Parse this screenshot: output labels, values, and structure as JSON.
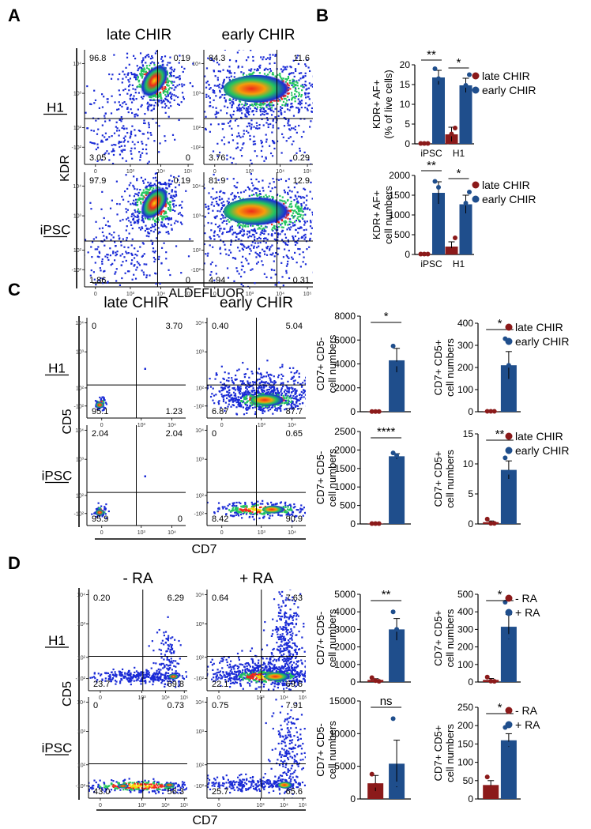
{
  "panels": {
    "A": "A",
    "B": "B",
    "C": "C",
    "D": "D"
  },
  "colors": {
    "late": "#8b1a1a",
    "early": "#1f4e8c",
    "density_low": "#1a2bd6",
    "density_mid": "#22c55e",
    "density_high": "#ef2a1a",
    "density_peak": "#f5d90a"
  },
  "flow": {
    "A": {
      "columns": [
        "late CHIR",
        "early CHIR"
      ],
      "rows": [
        "H1",
        "iPSC"
      ],
      "x_axis_title": "ALDEFLUOR",
      "y_axis_title": "KDR",
      "plots": [
        {
          "row": 0,
          "col": 0,
          "quadrants": [
            "96.8",
            "0.19",
            "3.05",
            "0"
          ],
          "cluster": "tight-high-left"
        },
        {
          "row": 0,
          "col": 1,
          "quadrants": [
            "84.3",
            "11.6",
            "3.76",
            "0.29"
          ],
          "cluster": "broad-high"
        },
        {
          "row": 1,
          "col": 0,
          "quadrants": [
            "97.9",
            "0.19",
            "1.86",
            "0"
          ],
          "cluster": "tight-high-left"
        },
        {
          "row": 1,
          "col": 1,
          "quadrants": [
            "81.9",
            "12.9",
            "4.94",
            "0.31"
          ],
          "cluster": "broad-high"
        }
      ]
    },
    "C": {
      "columns": [
        "late CHIR",
        "early CHIR"
      ],
      "rows": [
        "H1",
        "iPSC"
      ],
      "x_axis_title": "CD7",
      "y_axis_title": "CD5",
      "plots": [
        {
          "row": 0,
          "col": 0,
          "quadrants": [
            "0",
            "3.70",
            "95.1",
            "1.23"
          ],
          "cluster": "tiny-low-left"
        },
        {
          "row": 0,
          "col": 1,
          "quadrants": [
            "0.40",
            "5.04",
            "6.87",
            "87.7"
          ],
          "cluster": "broad-low-right"
        },
        {
          "row": 1,
          "col": 0,
          "quadrants": [
            "2.04",
            "2.04",
            "95.9",
            "0"
          ],
          "cluster": "tiny-low-left"
        },
        {
          "row": 1,
          "col": 1,
          "quadrants": [
            "0",
            "0.65",
            "8.42",
            "90.9"
          ],
          "cluster": "flat-low-right"
        }
      ]
    },
    "D": {
      "columns": [
        "- RA",
        "+ RA"
      ],
      "rows": [
        "H1",
        "iPSC"
      ],
      "x_axis_title": "CD7",
      "y_axis_title": "CD5",
      "plots": [
        {
          "row": 0,
          "col": 0,
          "quadrants": [
            "0.20",
            "6.29",
            "23.7",
            "69.8"
          ],
          "cluster": "band-low"
        },
        {
          "row": 0,
          "col": 1,
          "quadrants": [
            "0.64",
            "7.63",
            "22.1",
            "69.6"
          ],
          "cluster": "band-plume"
        },
        {
          "row": 1,
          "col": 0,
          "quadrants": [
            "0",
            "0.73",
            "43.0",
            "56.3"
          ],
          "cluster": "band-flat"
        },
        {
          "row": 1,
          "col": 1,
          "quadrants": [
            "0.75",
            "7.91",
            "25.7",
            "65.6"
          ],
          "cluster": "band-plume-small"
        }
      ]
    },
    "tick_labels": {
      "x": [
        "0",
        "10³",
        "10⁴",
        "10⁵"
      ],
      "y": [
        "-10²",
        "10²",
        "10³",
        "10⁴",
        "10⁵"
      ]
    }
  },
  "chart_data": [
    {
      "type": "bar",
      "panel": "B",
      "id": "B1",
      "ylabel": [
        "KDR+ AF+",
        "(% of live cells)"
      ],
      "categories": [
        "iPSC",
        "H1"
      ],
      "ylim": [
        0,
        20
      ],
      "yticks": [
        "0",
        "5",
        "10",
        "15",
        "20"
      ],
      "series": [
        {
          "name": "late CHIR",
          "values": [
            0.1,
            2.4
          ],
          "errors": [
            0.05,
            1.8
          ],
          "points": [
            [
              0.1,
              0.1,
              0.1
            ],
            [
              0.5,
              2.5,
              4.0
            ]
          ]
        },
        {
          "name": "early CHIR",
          "values": [
            16.8,
            14.8
          ],
          "errors": [
            1.8,
            1.8
          ],
          "points": [
            [
              19.0,
              16.5,
              14.8
            ],
            [
              12.0,
              14.8,
              17.5
            ]
          ]
        }
      ],
      "significance": [
        "**",
        "*"
      ],
      "legend": [
        "late CHIR",
        "early CHIR"
      ]
    },
    {
      "type": "bar",
      "panel": "B",
      "id": "B2",
      "ylabel": [
        "KDR+ AF+",
        "cell numbers"
      ],
      "categories": [
        "iPSC",
        "H1"
      ],
      "ylim": [
        0,
        2000
      ],
      "yticks": [
        "0",
        "500",
        "1000",
        "1500",
        "2000"
      ],
      "series": [
        {
          "name": "late CHIR",
          "values": [
            10,
            200
          ],
          "errors": [
            5,
            120
          ],
          "points": [
            [
              10,
              10,
              10
            ],
            [
              60,
              100,
              420
            ]
          ]
        },
        {
          "name": "early CHIR",
          "values": [
            1560,
            1270
          ],
          "errors": [
            280,
            230
          ],
          "points": [
            [
              1850,
              1700,
              1100
            ],
            [
              950,
              1300,
              1580
            ]
          ]
        }
      ],
      "significance": [
        "**",
        "*"
      ],
      "legend": [
        "late CHIR",
        "early CHIR"
      ]
    },
    {
      "type": "bar",
      "panel": "C",
      "id": "C1",
      "ylabel": [
        "CD7+ CD5-",
        "cell numbers"
      ],
      "categories": [
        "late CHIR",
        "early CHIR"
      ],
      "ylim": [
        0,
        8000
      ],
      "yticks": [
        "0",
        "2000",
        "4000",
        "6000",
        "8000"
      ],
      "series": [
        {
          "name": "values",
          "values": [
            20,
            4300
          ],
          "errors": [
            5,
            1000
          ],
          "points": [
            [
              20,
              20,
              20
            ],
            [
              5500,
              4000,
              3000
            ]
          ]
        }
      ],
      "significance": [
        "*"
      ]
    },
    {
      "type": "bar",
      "panel": "C",
      "id": "C2",
      "ylabel": [
        "CD7+ CD5+",
        "cell numbers"
      ],
      "categories": [
        "late CHIR",
        "early CHIR"
      ],
      "ylim": [
        0,
        400
      ],
      "yticks": [
        "0",
        "100",
        "200",
        "300",
        "400"
      ],
      "series": [
        {
          "name": "values",
          "values": [
            2,
            210
          ],
          "errors": [
            1,
            62
          ],
          "points": [
            [
              2,
              2,
              2
            ],
            [
              330,
              210,
              130
            ]
          ]
        }
      ],
      "significance": [
        "*"
      ],
      "legend": [
        "late CHIR",
        "early CHIR"
      ]
    },
    {
      "type": "bar",
      "panel": "C",
      "id": "C3",
      "ylabel": [
        "CD7+ CD5-",
        "cell numbers"
      ],
      "categories": [
        "late CHIR",
        "early CHIR"
      ],
      "ylim": [
        0,
        2500
      ],
      "yticks": [
        "0",
        "500",
        "1000",
        "1500",
        "2000",
        "2500"
      ],
      "series": [
        {
          "name": "values",
          "values": [
            10,
            1830
          ],
          "errors": [
            5,
            70
          ],
          "points": [
            [
              10,
              10,
              10
            ],
            [
              1920,
              1850,
              1760
            ]
          ]
        }
      ],
      "significance": [
        "****"
      ]
    },
    {
      "type": "bar",
      "panel": "C",
      "id": "C4",
      "ylabel": [
        "CD7+ CD5+",
        "cell numbers"
      ],
      "categories": [
        "late CHIR",
        "early CHIR"
      ],
      "ylim": [
        0,
        15
      ],
      "yticks": [
        "0",
        "5",
        "10",
        "15"
      ],
      "series": [
        {
          "name": "values",
          "values": [
            0.3,
            9.0
          ],
          "errors": [
            0.2,
            1.5
          ],
          "points": [
            [
              0.8,
              0.1,
              0.1
            ],
            [
              11.0,
              8.6,
              7.5
            ]
          ]
        }
      ],
      "significance": [
        "**"
      ],
      "legend": [
        "late CHIR",
        "early CHIR"
      ]
    },
    {
      "type": "bar",
      "panel": "D",
      "id": "D1",
      "ylabel": [
        "CD7+ CD5-",
        "cell numbers"
      ],
      "categories": [
        "- RA",
        "+ RA"
      ],
      "ylim": [
        0,
        5000
      ],
      "yticks": [
        "0",
        "1000",
        "2000",
        "3000",
        "4000",
        "5000"
      ],
      "series": [
        {
          "name": "values",
          "values": [
            120,
            3000
          ],
          "errors": [
            70,
            620
          ],
          "points": [
            [
              250,
              80,
              40
            ],
            [
              4000,
              3000,
              2000
            ]
          ]
        }
      ],
      "significance": [
        "**"
      ]
    },
    {
      "type": "bar",
      "panel": "D",
      "id": "D2",
      "ylabel": [
        "CD7+ CD5+",
        "cell numbers"
      ],
      "categories": [
        "- RA",
        "+ RA"
      ],
      "ylim": [
        0,
        500
      ],
      "yticks": [
        "0",
        "100",
        "200",
        "300",
        "400",
        "500"
      ],
      "series": [
        {
          "name": "values",
          "values": [
            12,
            315
          ],
          "errors": [
            8,
            70
          ],
          "points": [
            [
              28,
              5,
              4
            ],
            [
              455,
              260,
              230
            ]
          ]
        }
      ],
      "significance": [
        "*"
      ],
      "legend": [
        "- RA",
        "+ RA"
      ]
    },
    {
      "type": "bar",
      "panel": "D",
      "id": "D3",
      "ylabel": [
        "CD7+ CD5-",
        "cell numbers"
      ],
      "categories": [
        "- RA",
        "+ RA"
      ],
      "ylim": [
        0,
        15000
      ],
      "yticks": [
        "0",
        "5000",
        "10000",
        "15000"
      ],
      "series": [
        {
          "name": "values",
          "values": [
            2400,
            5400
          ],
          "errors": [
            1200,
            3600
          ],
          "points": [
            [
              3800,
              2100,
              1200
            ],
            [
              12300,
              2300,
              1500
            ]
          ]
        }
      ],
      "significance": [
        "ns"
      ]
    },
    {
      "type": "bar",
      "panel": "D",
      "id": "D4",
      "ylabel": [
        "CD7+ CD5+",
        "cell numbers"
      ],
      "categories": [
        "- RA",
        "+ RA"
      ],
      "ylim": [
        0,
        250
      ],
      "yticks": [
        "0",
        "50",
        "100",
        "150",
        "200",
        "250"
      ],
      "series": [
        {
          "name": "values",
          "values": [
            38,
            160
          ],
          "errors": [
            12,
            18
          ],
          "points": [
            [
              60,
              30,
              22
            ],
            [
              195,
              150,
              140
            ]
          ]
        }
      ],
      "significance": [
        "*"
      ],
      "legend": [
        "- RA",
        "+ RA"
      ]
    }
  ]
}
